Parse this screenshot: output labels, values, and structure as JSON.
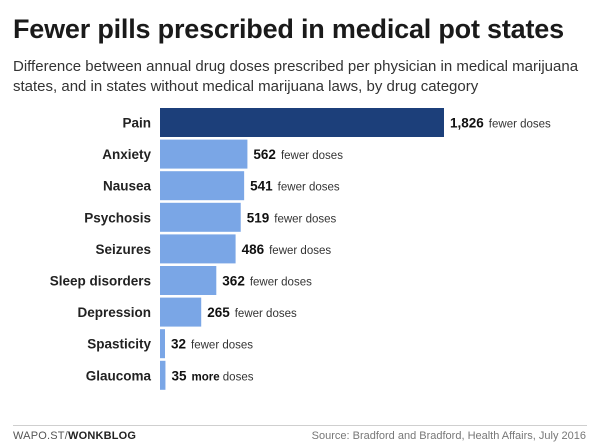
{
  "header": {
    "title": "Fewer pills prescribed in medical pot states",
    "subtitle": "Difference between annual drug doses prescribed per physician in medical marijuana states, and in states without medical marijuana laws, by drug category"
  },
  "colors": {
    "highlight_bar": "#1c3f7a",
    "bar": "#7aa6e6"
  },
  "chart_data": {
    "type": "bar",
    "orientation": "horizontal",
    "categories": [
      "Pain",
      "Anxiety",
      "Nausea",
      "Psychosis",
      "Seizures",
      "Sleep disorders",
      "Depression",
      "Spasticity",
      "Glaucoma"
    ],
    "values": [
      -1826,
      -562,
      -541,
      -519,
      -486,
      -362,
      -265,
      -32,
      35
    ],
    "value_labels": [
      "1,826",
      "562",
      "541",
      "519",
      "486",
      "362",
      "265",
      "32",
      "35"
    ],
    "unit_labels": [
      "fewer doses",
      "fewer doses",
      "fewer doses",
      "fewer doses",
      "fewer doses",
      "fewer doses",
      "fewer doses",
      "fewer doses",
      "more doses"
    ],
    "highlight_category": "Pain",
    "title": "Fewer pills prescribed in medical pot states",
    "xlabel": "",
    "ylabel": "",
    "grid": false,
    "legend": "none"
  },
  "footer": {
    "credit_prefix": "WAPO.ST/",
    "credit_brand": "WONKBLOG",
    "source": "Source: Bradford and Bradford, Health Affairs, July 2016"
  }
}
